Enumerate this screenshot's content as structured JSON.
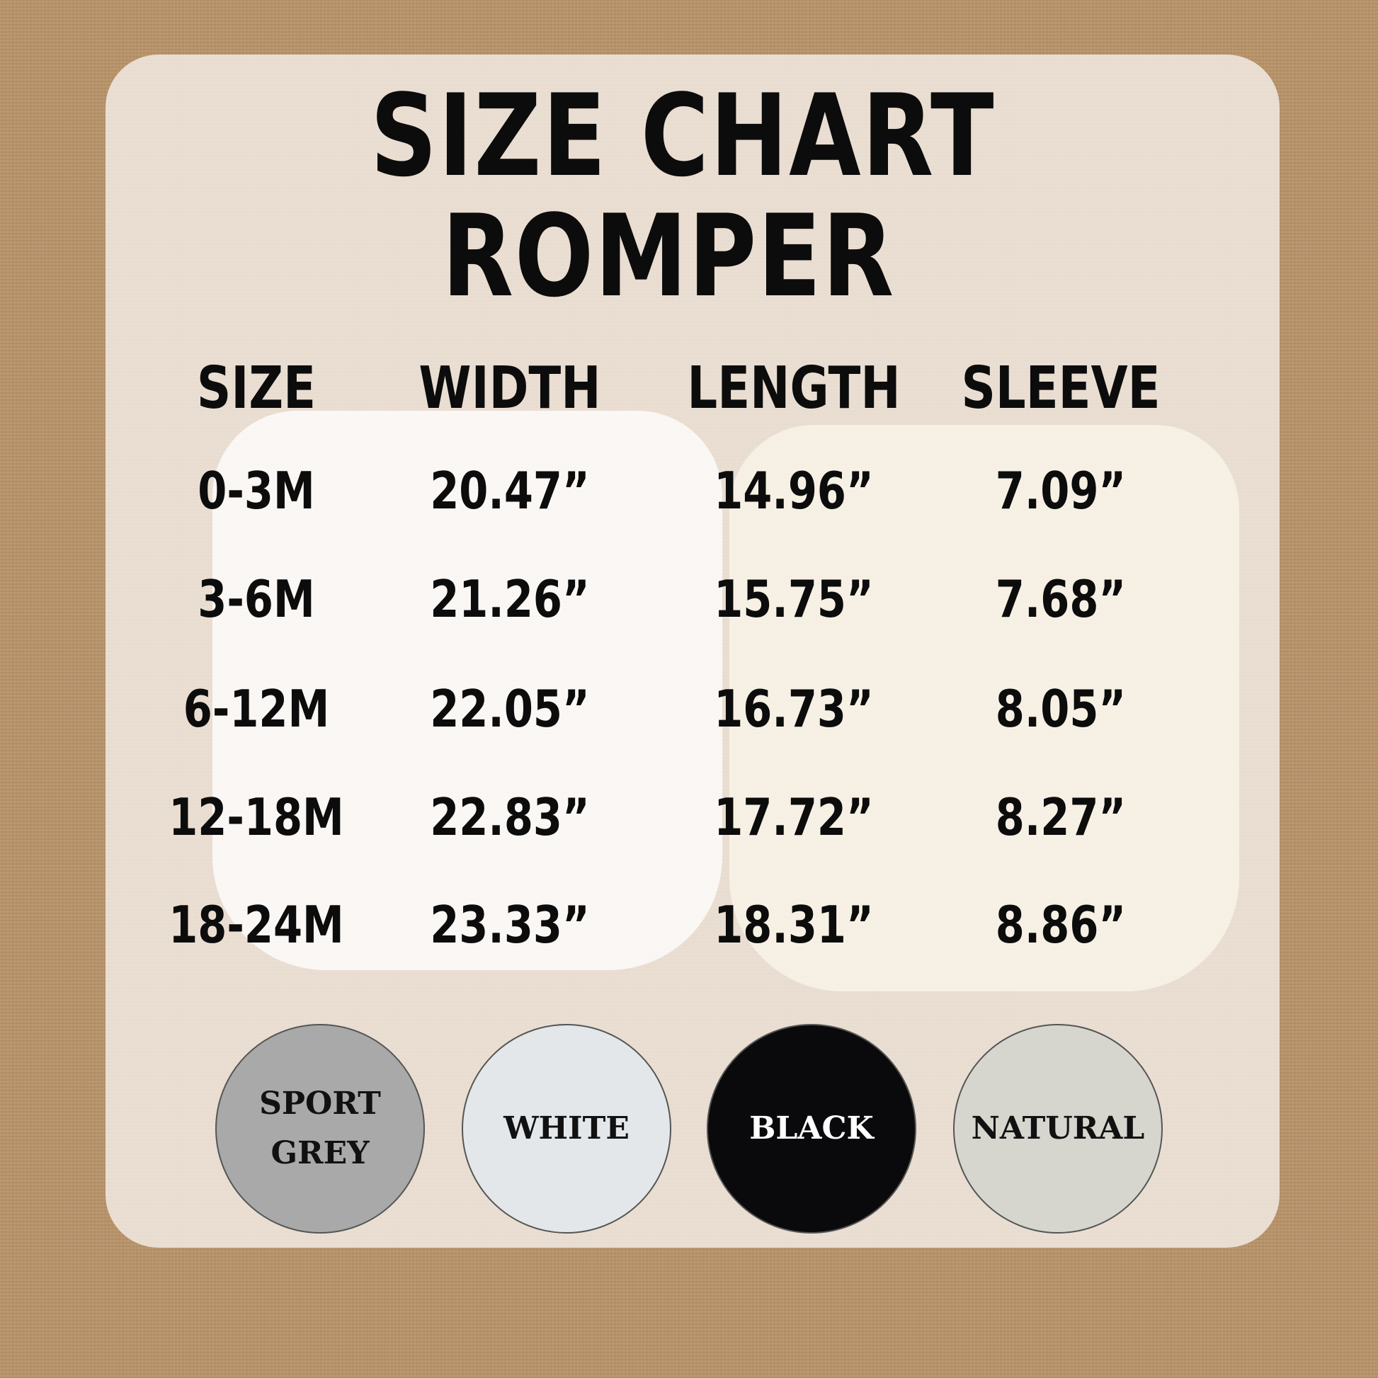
{
  "title": "SIZE CHART",
  "subtitle": "ROMPER",
  "headers": [
    "SIZE",
    "WIDTH",
    "LENGTH",
    "SLEEVE"
  ],
  "rows": [
    [
      "0-3M",
      "20.47”",
      "14.96”",
      "7.09”"
    ],
    [
      "3-6M",
      "21.26”",
      "15.75”",
      "7.68”"
    ],
    [
      "6-12M",
      "22.05”",
      "16.73”",
      "8.05”"
    ],
    [
      "12-18M",
      "22.83”",
      "17.72”",
      "8.27”"
    ],
    [
      "18-24M",
      "23.33”",
      "18.31”",
      "8.86”"
    ]
  ],
  "colors": [
    {
      "label_lines": [
        "SPORT",
        "GREY"
      ],
      "hex": "#a9a9a9",
      "text": "#111111"
    },
    {
      "label_lines": [
        "WHITE"
      ],
      "hex": "#e4e7ea",
      "text": "#111111"
    },
    {
      "label_lines": [
        "BLACK"
      ],
      "hex": "#0a0a0c",
      "text": "#ffffff"
    },
    {
      "label_lines": [
        "NATURAL"
      ],
      "hex": "#d6d6cf",
      "text": "#111111"
    }
  ]
}
